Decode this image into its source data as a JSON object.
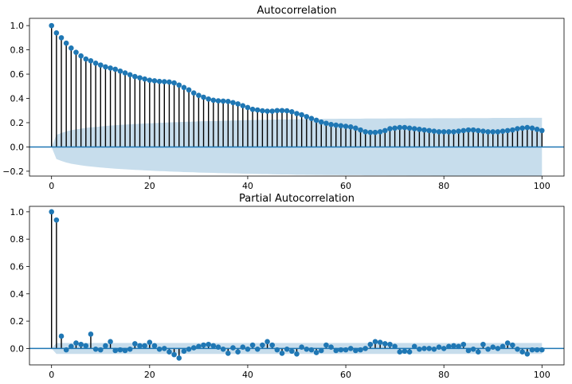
{
  "chart_data": [
    {
      "type": "stem",
      "title": "Autocorrelation",
      "xlim": [
        -4.5,
        104.5
      ],
      "ylim": [
        -0.24,
        1.06
      ],
      "xticks": [
        0,
        20,
        40,
        60,
        80,
        100
      ],
      "yticks": [
        -0.2,
        0.0,
        0.2,
        0.4,
        0.6,
        0.8,
        1.0
      ],
      "x_start": 0,
      "values": [
        1.0,
        0.94,
        0.9,
        0.855,
        0.815,
        0.78,
        0.75,
        0.725,
        0.71,
        0.69,
        0.675,
        0.66,
        0.65,
        0.64,
        0.625,
        0.61,
        0.595,
        0.58,
        0.57,
        0.56,
        0.55,
        0.545,
        0.54,
        0.538,
        0.535,
        0.528,
        0.51,
        0.49,
        0.47,
        0.445,
        0.425,
        0.41,
        0.395,
        0.385,
        0.38,
        0.378,
        0.375,
        0.365,
        0.355,
        0.34,
        0.325,
        0.31,
        0.305,
        0.298,
        0.295,
        0.295,
        0.3,
        0.3,
        0.298,
        0.29,
        0.275,
        0.265,
        0.25,
        0.235,
        0.22,
        0.205,
        0.195,
        0.185,
        0.18,
        0.175,
        0.17,
        0.165,
        0.155,
        0.14,
        0.125,
        0.12,
        0.12,
        0.125,
        0.135,
        0.15,
        0.155,
        0.16,
        0.16,
        0.155,
        0.15,
        0.145,
        0.14,
        0.135,
        0.13,
        0.125,
        0.125,
        0.125,
        0.125,
        0.13,
        0.135,
        0.14,
        0.14,
        0.135,
        0.13,
        0.125,
        0.125,
        0.125,
        0.13,
        0.135,
        0.14,
        0.15,
        0.155,
        0.16,
        0.155,
        0.145,
        0.135
      ],
      "confidence_band": [
        0.0,
        0.1,
        0.115,
        0.128,
        0.138,
        0.145,
        0.151,
        0.157,
        0.161,
        0.165,
        0.169,
        0.173,
        0.176,
        0.179,
        0.182,
        0.184,
        0.187,
        0.189,
        0.191,
        0.193,
        0.195,
        0.197,
        0.199,
        0.2,
        0.202,
        0.204,
        0.205,
        0.207,
        0.208,
        0.209,
        0.211,
        0.212,
        0.213,
        0.214,
        0.215,
        0.216,
        0.217,
        0.218,
        0.219,
        0.22,
        0.221,
        0.222,
        0.223,
        0.224,
        0.224,
        0.225,
        0.226,
        0.227,
        0.227,
        0.228,
        0.229,
        0.229,
        0.23,
        0.23,
        0.231,
        0.231,
        0.232,
        0.232,
        0.232,
        0.233,
        0.233,
        0.233,
        0.233,
        0.233,
        0.234,
        0.234,
        0.234,
        0.234,
        0.234,
        0.235,
        0.235,
        0.235,
        0.235,
        0.236,
        0.236,
        0.236,
        0.236,
        0.236,
        0.237,
        0.237,
        0.237,
        0.237,
        0.237,
        0.237,
        0.238,
        0.238,
        0.238,
        0.238,
        0.238,
        0.238,
        0.239,
        0.239,
        0.239,
        0.239,
        0.239,
        0.239,
        0.24,
        0.24,
        0.24,
        0.24,
        0.24
      ]
    },
    {
      "type": "stem",
      "title": "Partial Autocorrelation",
      "xlim": [
        -4.5,
        104.5
      ],
      "ylim": [
        -0.12,
        1.04
      ],
      "xticks": [
        0,
        20,
        40,
        60,
        80,
        100
      ],
      "yticks": [
        0.0,
        0.2,
        0.4,
        0.6,
        0.8,
        1.0
      ],
      "x_start": 0,
      "values": [
        1.0,
        0.94,
        0.09,
        -0.01,
        0.015,
        0.04,
        0.03,
        0.02,
        0.105,
        -0.005,
        -0.01,
        0.02,
        0.05,
        -0.015,
        -0.01,
        -0.015,
        -0.005,
        0.035,
        0.02,
        0.02,
        0.045,
        0.02,
        -0.005,
        0.0,
        -0.025,
        -0.045,
        -0.07,
        -0.02,
        -0.005,
        0.005,
        0.015,
        0.025,
        0.03,
        0.02,
        0.01,
        -0.005,
        -0.035,
        0.005,
        -0.025,
        0.01,
        -0.005,
        0.025,
        -0.005,
        0.025,
        0.05,
        0.025,
        -0.01,
        -0.035,
        -0.005,
        -0.02,
        -0.04,
        0.01,
        -0.005,
        -0.01,
        -0.03,
        -0.015,
        0.025,
        0.01,
        -0.015,
        -0.01,
        -0.01,
        0.0,
        -0.015,
        -0.01,
        0.0,
        0.03,
        0.05,
        0.045,
        0.035,
        0.03,
        0.015,
        -0.025,
        -0.02,
        -0.025,
        0.015,
        -0.005,
        0.0,
        0.0,
        -0.005,
        0.01,
        0.0,
        0.015,
        0.02,
        0.015,
        0.03,
        -0.015,
        -0.005,
        -0.025,
        0.03,
        -0.005,
        0.01,
        0.0,
        0.015,
        0.04,
        0.025,
        -0.005,
        -0.025,
        -0.04,
        -0.01,
        -0.01,
        -0.01
      ],
      "confidence_band": [
        0.0,
        0.04,
        0.04,
        0.04,
        0.04,
        0.04,
        0.04,
        0.04,
        0.04,
        0.04,
        0.04,
        0.04,
        0.04,
        0.04,
        0.04,
        0.04,
        0.04,
        0.04,
        0.04,
        0.04,
        0.04,
        0.04,
        0.04,
        0.04,
        0.04,
        0.04,
        0.04,
        0.04,
        0.04,
        0.04,
        0.04,
        0.04,
        0.04,
        0.04,
        0.04,
        0.04,
        0.04,
        0.04,
        0.04,
        0.04,
        0.04,
        0.04,
        0.04,
        0.04,
        0.04,
        0.04,
        0.04,
        0.04,
        0.04,
        0.04,
        0.04,
        0.04,
        0.04,
        0.04,
        0.04,
        0.04,
        0.04,
        0.04,
        0.04,
        0.04,
        0.04,
        0.04,
        0.04,
        0.04,
        0.04,
        0.04,
        0.04,
        0.04,
        0.04,
        0.04,
        0.04,
        0.04,
        0.04,
        0.04,
        0.04,
        0.04,
        0.04,
        0.04,
        0.04,
        0.04,
        0.04,
        0.04,
        0.04,
        0.04,
        0.04,
        0.04,
        0.04,
        0.04,
        0.04,
        0.04,
        0.04,
        0.04,
        0.04,
        0.04,
        0.04,
        0.04,
        0.04,
        0.04,
        0.04,
        0.04,
        0.04
      ]
    }
  ],
  "colors": {
    "marker": "#1f77b4",
    "stem": "#000000",
    "band": "#1f77b4"
  }
}
